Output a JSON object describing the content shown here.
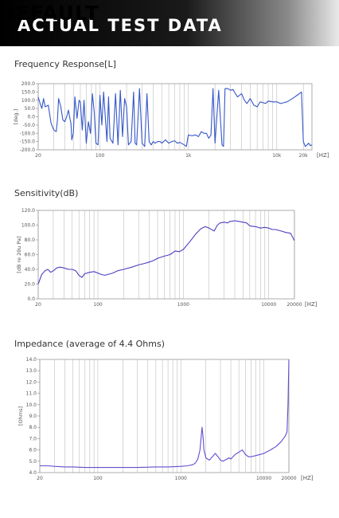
{
  "banner": {
    "watermark": "DEFAULT",
    "title": "ACTUAL TEST DATA"
  },
  "chart_data": [
    {
      "type": "line",
      "title": "Frequency Response[L]",
      "ylabel": "[deg.]",
      "xunit": "[HZ]",
      "xscale": "log",
      "xlim": [
        20,
        25000
      ],
      "ylim": [
        -200,
        200
      ],
      "yticks": [
        "200.0",
        "150.0",
        "100.0",
        "50.0",
        "0.0",
        "-50.0",
        "-100.0",
        "-150.0",
        "-200.0"
      ],
      "xticks": [
        {
          "v": 20,
          "label": "20"
        },
        {
          "v": 100,
          "label": "100"
        },
        {
          "v": 1000,
          "label": "1k"
        },
        {
          "v": 10000,
          "label": "10k"
        },
        {
          "v": 20000,
          "label": "20k"
        }
      ],
      "grid": "vertical",
      "line_color": "#3457c9",
      "series": [
        {
          "name": "",
          "x": [
            20,
            21,
            22,
            23,
            24,
            26,
            28,
            30,
            32,
            33,
            34,
            36,
            38,
            40,
            42,
            44,
            46,
            47,
            48,
            50,
            52,
            55,
            58,
            60,
            63,
            66,
            70,
            74,
            78,
            82,
            86,
            90,
            95,
            100,
            105,
            110,
            120,
            125,
            130,
            140,
            150,
            160,
            170,
            180,
            190,
            200,
            210,
            225,
            240,
            250,
            260,
            280,
            300,
            320,
            340,
            360,
            380,
            400,
            420,
            450,
            480,
            500,
            550,
            600,
            650,
            700,
            750,
            800,
            900,
            950,
            1000,
            1100,
            1200,
            1300,
            1400,
            1500,
            1600,
            1700,
            1800,
            1900,
            2000,
            2200,
            2400,
            2500,
            2600,
            2800,
            3000,
            3200,
            3400,
            3600,
            3800,
            4000,
            4300,
            4600,
            5000,
            5500,
            6000,
            6500,
            7000,
            7500,
            8000,
            9000,
            10000,
            11000,
            12000,
            13000,
            14000,
            15000,
            16000,
            17000,
            18000,
            19000,
            20000,
            21000,
            22000,
            23000,
            24000,
            25000
          ],
          "y": [
            120,
            80,
            50,
            110,
            60,
            70,
            -40,
            -80,
            -90,
            -20,
            110,
            60,
            -20,
            -30,
            0,
            40,
            -20,
            -40,
            -140,
            -100,
            120,
            -10,
            100,
            90,
            -80,
            100,
            -160,
            -30,
            -100,
            140,
            30,
            -160,
            -170,
            130,
            -50,
            150,
            -150,
            120,
            -130,
            -160,
            140,
            -170,
            160,
            -120,
            110,
            60,
            -170,
            -150,
            150,
            -160,
            -170,
            170,
            -160,
            -180,
            140,
            -150,
            -170,
            -150,
            -160,
            -150,
            -150,
            -160,
            -140,
            -160,
            -150,
            -145,
            -160,
            -155,
            -170,
            -180,
            -110,
            -115,
            -110,
            -120,
            -90,
            -100,
            -100,
            -130,
            -110,
            170,
            -160,
            160,
            -170,
            -180,
            170,
            170,
            160,
            165,
            140,
            120,
            130,
            140,
            100,
            80,
            110,
            70,
            60,
            90,
            85,
            80,
            95,
            90,
            90,
            80,
            85,
            90,
            100,
            110,
            120,
            130,
            140,
            150,
            -150,
            -180,
            -170,
            -160,
            -175,
            -170
          ]
        }
      ]
    },
    {
      "type": "line",
      "title": "Sensitivity(dB)",
      "ylabel": "[dB re 20u Pa]",
      "xunit": "[HZ]",
      "xscale": "log",
      "xlim": [
        20,
        20000
      ],
      "ylim": [
        0,
        120
      ],
      "yticks": [
        "120.0",
        "100.0",
        "80.0",
        "60.0",
        "40.0",
        "20.0",
        "0.0"
      ],
      "xticks": [
        {
          "v": 20,
          "label": "20"
        },
        {
          "v": 100,
          "label": "100"
        },
        {
          "v": 1000,
          "label": "1000"
        },
        {
          "v": 10000,
          "label": "10000"
        },
        {
          "v": 20000,
          "label": "20000"
        }
      ],
      "grid": "vertical",
      "line_color": "#4b3fbf",
      "series": [
        {
          "name": "",
          "x": [
            20,
            22,
            24,
            26,
            28,
            30,
            33,
            36,
            40,
            45,
            50,
            55,
            60,
            65,
            70,
            80,
            90,
            100,
            110,
            120,
            130,
            150,
            170,
            200,
            250,
            300,
            350,
            400,
            450,
            500,
            600,
            700,
            800,
            900,
            1000,
            1200,
            1400,
            1600,
            1800,
            2000,
            2300,
            2500,
            2700,
            3000,
            3300,
            3500,
            4000,
            4500,
            5000,
            5500,
            6000,
            7000,
            8000,
            9000,
            10000,
            11000,
            12000,
            14000,
            16000,
            18000,
            20000
          ],
          "y": [
            20,
            33,
            38,
            40,
            36,
            38,
            42,
            43,
            42,
            40,
            40,
            38,
            32,
            29,
            34,
            36,
            37,
            35,
            33,
            32,
            33,
            35,
            38,
            40,
            43,
            46,
            48,
            50,
            52,
            55,
            58,
            60,
            65,
            64,
            67,
            78,
            88,
            95,
            98,
            96,
            92,
            100,
            103,
            104,
            103,
            105,
            106,
            105,
            104,
            103,
            99,
            98,
            96,
            97,
            96,
            94,
            94,
            92,
            90,
            89,
            79
          ]
        }
      ]
    },
    {
      "type": "line",
      "title": "Impedance (average of 4.4 Ohms)",
      "ylabel": "[Ohms]",
      "xunit": "[HZ]",
      "xscale": "log",
      "xlim": [
        20,
        20000
      ],
      "ylim": [
        4,
        14
      ],
      "yticks": [
        "14.0",
        "13.0",
        "12.0",
        "11.0",
        "10.0",
        "9.0",
        "8.0",
        "7.0",
        "6.0",
        "5.0",
        "4.0"
      ],
      "xticks": [
        {
          "v": 20,
          "label": "20"
        },
        {
          "v": 100,
          "label": "100"
        },
        {
          "v": 1000,
          "label": "1000"
        },
        {
          "v": 10000,
          "label": "10000"
        },
        {
          "v": 20000,
          "label": "20000"
        }
      ],
      "grid": "vertical",
      "line_color": "#5e4fd1",
      "series": [
        {
          "name": "",
          "x": [
            20,
            25,
            30,
            40,
            50,
            70,
            100,
            200,
            300,
            500,
            700,
            1000,
            1200,
            1400,
            1500,
            1600,
            1700,
            1750,
            1800,
            1850,
            1900,
            2000,
            2200,
            2400,
            2600,
            2800,
            3000,
            3200,
            3400,
            3600,
            3800,
            4000,
            4500,
            5000,
            5500,
            6000,
            6500,
            7000,
            8000,
            9000,
            10000,
            12000,
            14000,
            16000,
            18000,
            19000,
            19500,
            20000
          ],
          "y": [
            4.6,
            4.6,
            4.55,
            4.5,
            4.5,
            4.45,
            4.45,
            4.45,
            4.45,
            4.5,
            4.5,
            4.55,
            4.6,
            4.7,
            4.85,
            5.2,
            6.0,
            7.0,
            8.0,
            7.2,
            6.0,
            5.3,
            5.1,
            5.4,
            5.7,
            5.4,
            5.1,
            5.0,
            5.1,
            5.2,
            5.3,
            5.2,
            5.6,
            5.8,
            6.0,
            5.6,
            5.4,
            5.4,
            5.5,
            5.6,
            5.7,
            6.0,
            6.3,
            6.7,
            7.2,
            7.6,
            10.0,
            14.0
          ]
        }
      ]
    }
  ]
}
